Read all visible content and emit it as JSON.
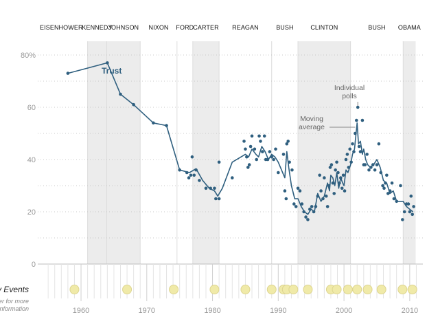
{
  "chart_data": {
    "type": "line",
    "xlim": [
      1953,
      2012
    ],
    "ylim": [
      0,
      80
    ],
    "y_ticks": [
      {
        "value": 0,
        "label": "0"
      },
      {
        "value": 20,
        "label": "20"
      },
      {
        "value": 40,
        "label": "40"
      },
      {
        "value": 60,
        "label": "60"
      },
      {
        "value": 80,
        "label": "80%"
      }
    ],
    "x_ticks": [
      {
        "value": 1960,
        "label": "1960"
      },
      {
        "value": 1970,
        "label": "1970"
      },
      {
        "value": 1980,
        "label": "1980"
      },
      {
        "value": 1990,
        "label": "1990"
      },
      {
        "value": 2000,
        "label": "2000"
      },
      {
        "value": 2010,
        "label": "2010"
      }
    ],
    "presidents": [
      {
        "label": "EISENHOWER",
        "start": 1953,
        "end": 1961,
        "shaded": false
      },
      {
        "label": "KENNEDY",
        "start": 1961,
        "end": 1963.9,
        "shaded": true
      },
      {
        "label": "JOHNSON",
        "start": 1963.9,
        "end": 1969,
        "shaded": true
      },
      {
        "label": "NIXON",
        "start": 1969,
        "end": 1974.6,
        "shaded": false
      },
      {
        "label": "FORD",
        "start": 1974.6,
        "end": 1977,
        "shaded": false
      },
      {
        "label": "CARTER",
        "start": 1977,
        "end": 1981,
        "shaded": true
      },
      {
        "label": "REAGAN",
        "start": 1981,
        "end": 1989,
        "shaded": false
      },
      {
        "label": "BUSH",
        "start": 1989,
        "end": 1993,
        "shaded": false
      },
      {
        "label": "CLINTON",
        "start": 1993,
        "end": 2001,
        "shaded": true
      },
      {
        "label": "BUSH",
        "start": 2001,
        "end": 2009,
        "shaded": false
      },
      {
        "label": "OBAMA",
        "start": 2009,
        "end": 2010.9,
        "shaded": true
      }
    ],
    "series": [
      {
        "name": "Trust",
        "color": "#2f5f7f",
        "moving_average": [
          [
            1958,
            73
          ],
          [
            1964,
            77
          ],
          [
            1966,
            65
          ],
          [
            1968,
            61
          ],
          [
            1971,
            54
          ],
          [
            1973,
            53
          ],
          [
            1975,
            36
          ],
          [
            1976.5,
            35
          ],
          [
            1977.5,
            36.5
          ],
          [
            1978.5,
            32
          ],
          [
            1979.5,
            29
          ],
          [
            1980.3,
            28
          ],
          [
            1980.8,
            26
          ],
          [
            1981.5,
            29
          ],
          [
            1983,
            39
          ],
          [
            1985,
            42
          ],
          [
            1985.5,
            41
          ],
          [
            1986,
            44
          ],
          [
            1986.6,
            42
          ],
          [
            1987,
            41
          ],
          [
            1987.5,
            45
          ],
          [
            1988,
            43
          ],
          [
            1988.5,
            40
          ],
          [
            1989,
            42
          ],
          [
            1989.5,
            41
          ],
          [
            1990,
            39
          ],
          [
            1990.5,
            36
          ],
          [
            1991,
            33
          ],
          [
            1991.3,
            43
          ],
          [
            1991.6,
            37
          ],
          [
            1992,
            30
          ],
          [
            1992.5,
            25
          ],
          [
            1993,
            25
          ],
          [
            1993.5,
            22
          ],
          [
            1994,
            20
          ],
          [
            1994.5,
            19
          ],
          [
            1995,
            21
          ],
          [
            1995.5,
            20
          ],
          [
            1996,
            27
          ],
          [
            1996.5,
            24
          ],
          [
            1997,
            26
          ],
          [
            1997.5,
            31
          ],
          [
            1997.8,
            28
          ],
          [
            1998,
            34
          ],
          [
            1998.3,
            33
          ],
          [
            1998.6,
            30
          ],
          [
            1998.9,
            35
          ],
          [
            1999.2,
            29
          ],
          [
            1999.5,
            33
          ],
          [
            1999.8,
            31
          ],
          [
            2000,
            30
          ],
          [
            2000.3,
            36
          ],
          [
            2000.6,
            35
          ],
          [
            2001,
            38
          ],
          [
            2001.3,
            42
          ],
          [
            2001.6,
            44
          ],
          [
            2001.8,
            49
          ],
          [
            2002,
            54
          ],
          [
            2002.2,
            46
          ],
          [
            2002.5,
            47
          ],
          [
            2002.8,
            42
          ],
          [
            2003,
            44
          ],
          [
            2003.3,
            40
          ],
          [
            2003.6,
            38
          ],
          [
            2004,
            37
          ],
          [
            2004.5,
            38
          ],
          [
            2005,
            40
          ],
          [
            2005.5,
            37
          ],
          [
            2006,
            32
          ],
          [
            2006.5,
            31
          ],
          [
            2007,
            27
          ],
          [
            2007.5,
            28
          ],
          [
            2008,
            24
          ],
          [
            2009,
            24
          ],
          [
            2009.5,
            22
          ],
          [
            2010,
            21
          ],
          [
            2010.5,
            20
          ]
        ],
        "polls": [
          [
            1958,
            73
          ],
          [
            1964,
            77
          ],
          [
            1966,
            65
          ],
          [
            1968,
            61
          ],
          [
            1971,
            54
          ],
          [
            1973,
            53
          ],
          [
            1975,
            36
          ],
          [
            1976.1,
            35
          ],
          [
            1976.4,
            33
          ],
          [
            1976.7,
            34
          ],
          [
            1976.9,
            41
          ],
          [
            1977.2,
            34
          ],
          [
            1977.5,
            36
          ],
          [
            1978,
            32
          ],
          [
            1979,
            29
          ],
          [
            1979.7,
            29
          ],
          [
            1980.3,
            29
          ],
          [
            1980.5,
            25
          ],
          [
            1981,
            25
          ],
          [
            1981,
            39
          ],
          [
            1983,
            33
          ],
          [
            1984.8,
            47
          ],
          [
            1985,
            44
          ],
          [
            1985.2,
            41
          ],
          [
            1985.4,
            37
          ],
          [
            1985.6,
            38
          ],
          [
            1985.8,
            45
          ],
          [
            1986,
            49
          ],
          [
            1986.4,
            44
          ],
          [
            1986.7,
            40
          ],
          [
            1987.1,
            49
          ],
          [
            1987.3,
            47
          ],
          [
            1987.6,
            43
          ],
          [
            1987.9,
            49
          ],
          [
            1988.1,
            40
          ],
          [
            1988.4,
            40
          ],
          [
            1988.7,
            43
          ],
          [
            1989,
            41
          ],
          [
            1989.3,
            40
          ],
          [
            1989.6,
            44
          ],
          [
            1990,
            35
          ],
          [
            1990.8,
            42
          ],
          [
            1991,
            28
          ],
          [
            1991.2,
            25
          ],
          [
            1991.3,
            46
          ],
          [
            1991.5,
            47
          ],
          [
            1991.7,
            39
          ],
          [
            1992.1,
            36
          ],
          [
            1992.4,
            23
          ],
          [
            1992.7,
            22
          ],
          [
            1993,
            29
          ],
          [
            1993.3,
            28
          ],
          [
            1993.6,
            23
          ],
          [
            1993.9,
            20
          ],
          [
            1994.2,
            18
          ],
          [
            1994.5,
            17
          ],
          [
            1994.8,
            21
          ],
          [
            1995.1,
            22
          ],
          [
            1995.4,
            20
          ],
          [
            1995.7,
            22
          ],
          [
            1996,
            26
          ],
          [
            1996.3,
            34
          ],
          [
            1996.5,
            28
          ],
          [
            1996.8,
            25
          ],
          [
            1997,
            33
          ],
          [
            1997.3,
            26
          ],
          [
            1997.5,
            22
          ],
          [
            1997.7,
            30
          ],
          [
            1997.9,
            37
          ],
          [
            1998.1,
            38
          ],
          [
            1998.3,
            31
          ],
          [
            1998.5,
            27
          ],
          [
            1998.7,
            36
          ],
          [
            1998.9,
            39
          ],
          [
            1999.1,
            35
          ],
          [
            1999.3,
            31
          ],
          [
            1999.5,
            33
          ],
          [
            1999.7,
            29
          ],
          [
            1999.9,
            34
          ],
          [
            2000.1,
            28
          ],
          [
            2000.3,
            40
          ],
          [
            2000.5,
            42
          ],
          [
            2000.7,
            37
          ],
          [
            2000.9,
            44
          ],
          [
            2001.1,
            39
          ],
          [
            2001.3,
            46
          ],
          [
            2001.5,
            43
          ],
          [
            2001.7,
            50
          ],
          [
            2001.9,
            55
          ],
          [
            2002.1,
            60
          ],
          [
            2002.3,
            45
          ],
          [
            2002.5,
            43
          ],
          [
            2002.8,
            55
          ],
          [
            2003,
            38
          ],
          [
            2003.2,
            38
          ],
          [
            2003.5,
            42
          ],
          [
            2003.8,
            36
          ],
          [
            2004.1,
            37
          ],
          [
            2004.4,
            38
          ],
          [
            2004.7,
            36
          ],
          [
            2005,
            38
          ],
          [
            2005.3,
            46
          ],
          [
            2005.6,
            35
          ],
          [
            2005.9,
            30
          ],
          [
            2006.1,
            29
          ],
          [
            2006.3,
            31
          ],
          [
            2006.5,
            34
          ],
          [
            2006.7,
            27
          ],
          [
            2007,
            28
          ],
          [
            2007.3,
            31
          ],
          [
            2007.6,
            25
          ],
          [
            2008,
            24
          ],
          [
            2008.6,
            30
          ],
          [
            2008.9,
            17
          ],
          [
            2009.2,
            20
          ],
          [
            2009.5,
            23
          ],
          [
            2009.8,
            23
          ],
          [
            2010,
            20
          ],
          [
            2010.2,
            26
          ],
          [
            2010.4,
            19
          ],
          [
            2010.6,
            22
          ]
        ]
      }
    ],
    "annotations": [
      {
        "text_lines": [
          "Individual",
          "polls"
        ]
      },
      {
        "text_lines": [
          "Moving",
          "average"
        ]
      }
    ],
    "events": {
      "title": "Key Events",
      "subtitle_lines": [
        "Hover for more",
        "information"
      ],
      "color": "#f0eaa8",
      "border_color": "#ddd590",
      "years": [
        1959,
        1967,
        1974.1,
        1980.3,
        1985,
        1989,
        1990.8,
        1991.3,
        1992.3,
        1994.5,
        1998,
        1998.9,
        2000.6,
        2002,
        2003.6,
        2005.7,
        2008.9,
        2010.4
      ]
    }
  }
}
